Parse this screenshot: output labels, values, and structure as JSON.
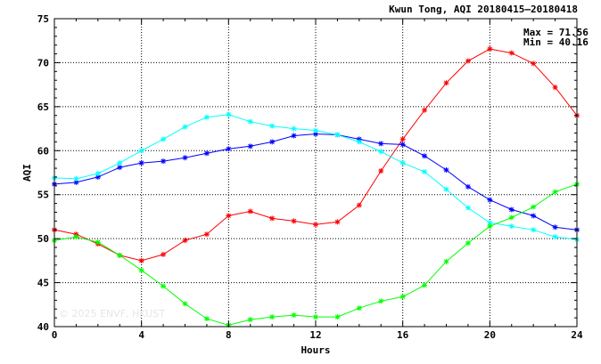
{
  "chart_data": {
    "type": "line",
    "title": "Kwun Tong, AQI 20180415–20180418",
    "xlabel": "Hours",
    "ylabel": "AQI",
    "xlim": [
      0,
      24
    ],
    "ylim": [
      40,
      75
    ],
    "xticks": [
      "0",
      "4",
      "8",
      "12",
      "16",
      "20",
      "24"
    ],
    "yticks": [
      "40",
      "45",
      "50",
      "55",
      "60",
      "65",
      "70",
      "75"
    ],
    "grid": true,
    "annotations": {
      "max": "Max = 71.56",
      "min": "Min = 40.16"
    },
    "watermark": "© 2025  ENVF, HKUST",
    "x": [
      0,
      1,
      2,
      3,
      4,
      5,
      6,
      7,
      8,
      9,
      10,
      11,
      12,
      13,
      14,
      15,
      16,
      17,
      18,
      19,
      20,
      21,
      22,
      23,
      24
    ],
    "series": [
      {
        "color": "#ff0000",
        "values": [
          51.0,
          50.5,
          49.4,
          48.1,
          47.5,
          48.2,
          49.8,
          50.5,
          52.6,
          53.1,
          52.3,
          52.0,
          51.6,
          51.9,
          53.8,
          57.7,
          61.3,
          64.6,
          67.7,
          70.2,
          71.56,
          71.1,
          69.9,
          67.2,
          64.0
        ]
      },
      {
        "color": "#0000ff",
        "values": [
          56.2,
          56.4,
          57.0,
          58.1,
          58.6,
          58.8,
          59.2,
          59.7,
          60.2,
          60.5,
          61.0,
          61.7,
          61.9,
          61.8,
          61.3,
          60.8,
          60.7,
          59.4,
          57.8,
          55.9,
          54.4,
          53.3,
          52.6,
          51.3,
          51.0
        ]
      },
      {
        "color": "#00ffff",
        "values": [
          56.9,
          56.8,
          57.4,
          58.6,
          60.0,
          61.3,
          62.7,
          63.8,
          64.1,
          63.3,
          62.8,
          62.5,
          62.3,
          61.8,
          61.0,
          59.9,
          58.6,
          57.6,
          55.6,
          53.5,
          51.8,
          51.4,
          51.0,
          50.2,
          49.9
        ]
      },
      {
        "color": "#00ff00",
        "values": [
          49.8,
          50.2,
          49.6,
          48.1,
          46.4,
          44.6,
          42.6,
          40.9,
          40.16,
          40.8,
          41.1,
          41.3,
          41.1,
          41.1,
          42.1,
          42.9,
          43.4,
          44.7,
          47.4,
          49.5,
          51.4,
          52.4,
          53.6,
          55.3,
          56.2
        ]
      }
    ]
  }
}
